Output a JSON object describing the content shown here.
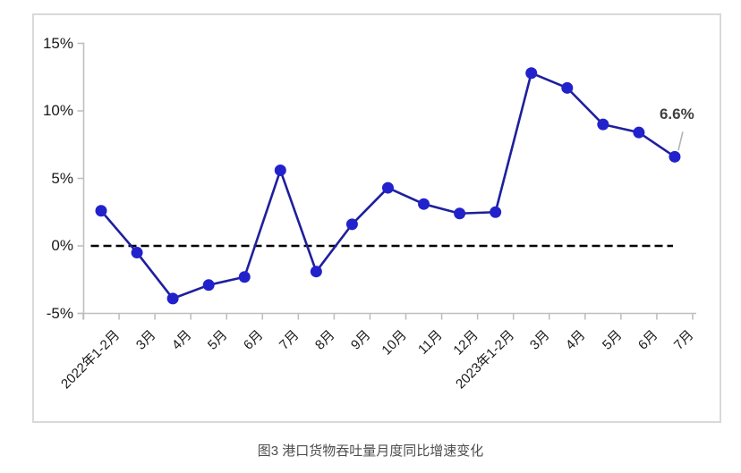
{
  "chart_data": {
    "type": "line",
    "categories": [
      "2022年1-2月",
      "3月",
      "4月",
      "5月",
      "6月",
      "7月",
      "8月",
      "9月",
      "10月",
      "11月",
      "12月",
      "2023年1-2月",
      "3月",
      "4月",
      "5月",
      "6月",
      "7月"
    ],
    "series": [
      {
        "name": "港口货物吞吐量月度同比增速",
        "values": [
          2.6,
          -0.5,
          -3.9,
          -2.9,
          -2.3,
          5.6,
          -1.9,
          1.6,
          4.3,
          3.1,
          2.4,
          2.5,
          12.8,
          11.7,
          9.0,
          8.4,
          6.6
        ]
      }
    ],
    "ylim": [
      -5,
      15
    ],
    "yticks": [
      15,
      10,
      5,
      0,
      -5
    ],
    "ytick_suffix": "%",
    "grid": false,
    "legend_position": "none",
    "zero_line": {
      "style": "dashed",
      "color": "#000000"
    },
    "annotation": {
      "text": "6.6%",
      "target_category": "7月",
      "target_value": 6.6
    }
  },
  "caption": "图3 港口货物吞吐量月度同比增速变化",
  "colors": {
    "line": "#1f1f9c",
    "marker": "#2222cc",
    "axis": "#bfbfbf",
    "zero_line": "#000000",
    "annotation_text": "#404040",
    "leader_line": "#b3b3b3",
    "caption_text": "#4d4d4d",
    "border": "#d9d9d9",
    "tick_label": "#1a1a1a"
  }
}
